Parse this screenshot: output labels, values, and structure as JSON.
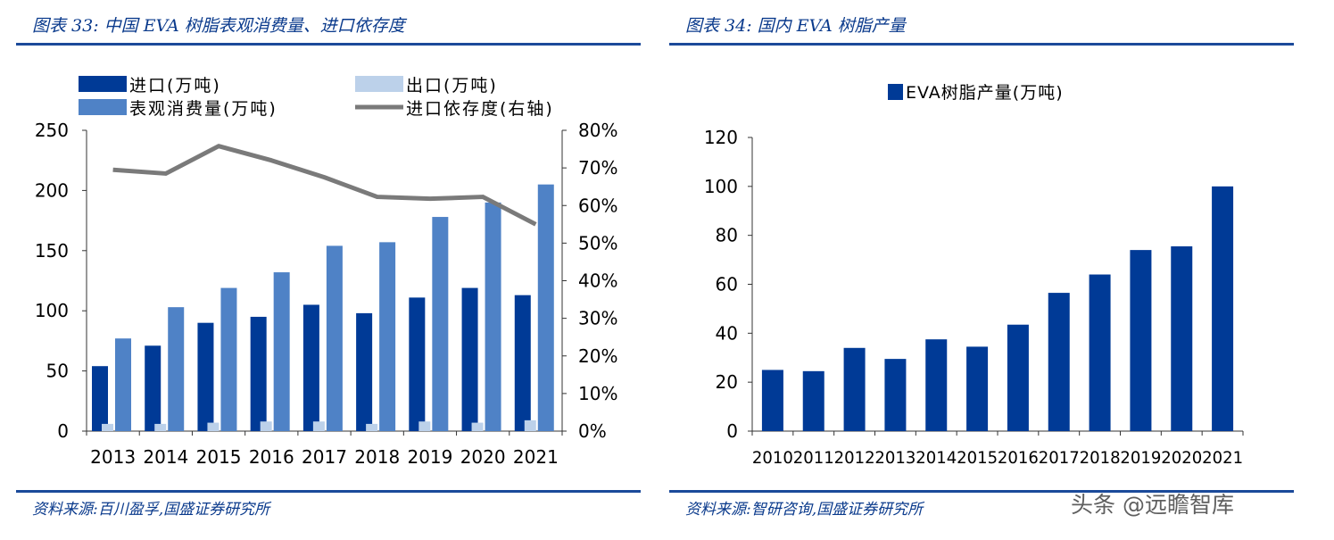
{
  "left": {
    "title": "图表 33:  中国 EVA 树脂表观消费量、进口依存度",
    "source": "资料来源:百川盈孚,国盛证券研究所"
  },
  "right": {
    "title": "图表 34:  国内 EVA 树脂产量",
    "source": "资料来源:智研咨询,国盛证券研究所"
  },
  "watermark": "头条 @远瞻智库",
  "colors": {
    "dark_blue": "#003a96",
    "mid_blue": "#4f82c6",
    "light_blue": "#bcd1ea",
    "gray_line": "#7a7a7a",
    "title_blue": "#0a3a8c"
  },
  "chart_data": [
    {
      "type": "bar",
      "title": "",
      "categories": [
        "2013",
        "2014",
        "2015",
        "2016",
        "2017",
        "2018",
        "2019",
        "2020",
        "2021"
      ],
      "series": [
        {
          "name": "进口(万吨)",
          "axis": "left",
          "values": [
            54,
            71,
            90,
            95,
            105,
            98,
            111,
            119,
            113
          ]
        },
        {
          "name": "出口(万吨)",
          "axis": "left",
          "values": [
            6,
            6,
            7,
            8,
            8,
            6,
            8,
            7,
            9
          ]
        },
        {
          "name": "表观消费量(万吨)",
          "axis": "left",
          "values": [
            77,
            103,
            119,
            132,
            154,
            157,
            178,
            190,
            205
          ]
        },
        {
          "name": "进口依存度(右轴)",
          "type": "line",
          "axis": "right",
          "values": [
            69.5,
            68.5,
            75.8,
            72.0,
            67.5,
            62.3,
            61.8,
            62.3,
            55.0
          ]
        }
      ],
      "y_left": {
        "min": 0,
        "max": 250,
        "ticks": [
          "0",
          "50",
          "100",
          "150",
          "200",
          "250"
        ]
      },
      "y_right": {
        "min": 0,
        "max": 80,
        "ticks": [
          "0%",
          "10%",
          "20%",
          "30%",
          "40%",
          "50%",
          "60%",
          "70%",
          "80%"
        ]
      },
      "legend": "top"
    },
    {
      "type": "bar",
      "title": "",
      "categories": [
        "2010",
        "2011",
        "2012",
        "2013",
        "2014",
        "2015",
        "2016",
        "2017",
        "2018",
        "2019",
        "2020",
        "2021"
      ],
      "series": [
        {
          "name": "EVA树脂产量(万吨)",
          "values": [
            25,
            24.5,
            34,
            29.5,
            37.5,
            34.5,
            43.5,
            56.5,
            64,
            74,
            75.5,
            100
          ]
        }
      ],
      "y": {
        "min": 0,
        "max": 120,
        "ticks": [
          "0",
          "20",
          "40",
          "60",
          "80",
          "100",
          "120"
        ]
      },
      "legend": "top"
    }
  ]
}
